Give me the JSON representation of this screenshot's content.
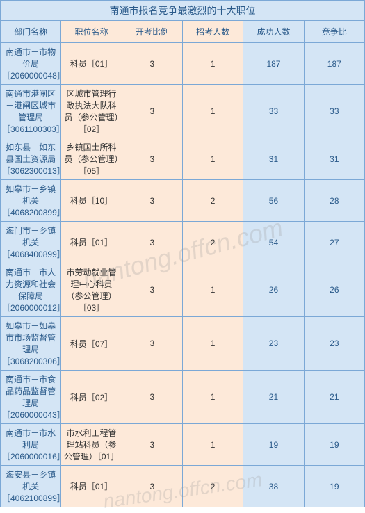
{
  "title": "南通市报名竞争最激烈的十大职位",
  "headers": {
    "dept": "部门名称",
    "position": "职位名称",
    "ratio": "开考比例",
    "recruit": "招考人数",
    "success": "成功人数",
    "compete": "竞争比"
  },
  "rows": [
    {
      "dept": "南通市－市物价局\n［2060000048］",
      "position": "科员［01］",
      "ratio": "3",
      "recruit": "1",
      "success": "187",
      "compete": "187"
    },
    {
      "dept": "南通市港闸区－港闸区城市管理局\n［3061100303］",
      "position": "区城市管理行政执法大队科员（参公管理）［02］",
      "ratio": "3",
      "recruit": "1",
      "success": "33",
      "compete": "33"
    },
    {
      "dept": "如东县－如东县国土资源局\n［3062300013］",
      "position": "乡镇国土所科员（参公管理）［05］",
      "ratio": "3",
      "recruit": "1",
      "success": "31",
      "compete": "31"
    },
    {
      "dept": "如皋市－乡镇机关\n［4068200899］",
      "position": "科员［10］",
      "ratio": "3",
      "recruit": "2",
      "success": "56",
      "compete": "28"
    },
    {
      "dept": "海门市－乡镇机关\n［4068400899］",
      "position": "科员［01］",
      "ratio": "3",
      "recruit": "2",
      "success": "54",
      "compete": "27"
    },
    {
      "dept": "南通市－市人力资源和社会保障局\n［2060000012］",
      "position": "市劳动就业管理中心科员（参公管理）［03］",
      "ratio": "3",
      "recruit": "1",
      "success": "26",
      "compete": "26"
    },
    {
      "dept": "如皋市－如皋市市场监督管理局\n［3068200306］",
      "position": "科员［07］",
      "ratio": "3",
      "recruit": "1",
      "success": "23",
      "compete": "23"
    },
    {
      "dept": "南通市－市食品药品监督管理局\n［2060000043］",
      "position": "科员［02］",
      "ratio": "3",
      "recruit": "1",
      "success": "21",
      "compete": "21"
    },
    {
      "dept": "南通市－市水利局\n［2060000016］",
      "position": "市水利工程管理站科员（参公管理）［01］",
      "ratio": "3",
      "recruit": "1",
      "success": "19",
      "compete": "19"
    },
    {
      "dept": "海安县－乡镇机关\n［4062100899］",
      "position": "科员［01］",
      "ratio": "3",
      "recruit": "2",
      "success": "38",
      "compete": "19"
    }
  ],
  "watermark1": "nantong.offcn.com",
  "watermark2": "nantong.offcn.com",
  "colors": {
    "border": "#7ba8d6",
    "blue_bg": "#d4e5f5",
    "orange_bg": "#fde9d9",
    "blue_text": "#2a5a8a"
  }
}
